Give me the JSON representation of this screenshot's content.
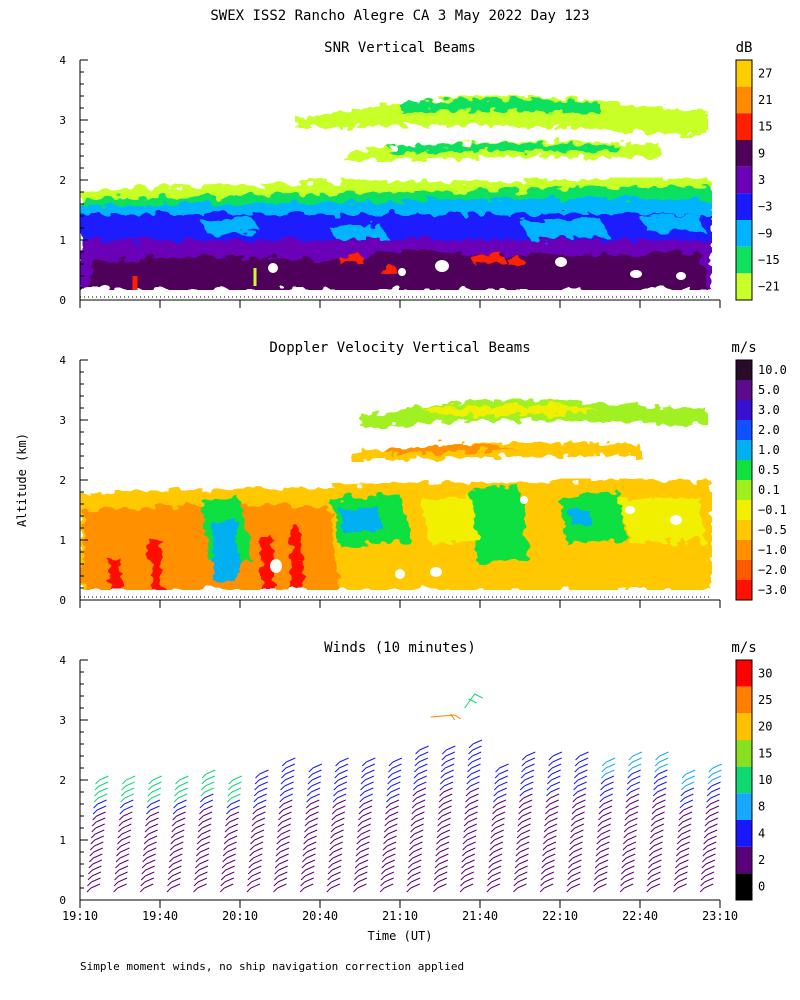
{
  "figure": {
    "title": "SWEX ISS2 Rancho Alegre CA   3 May 2022 Day 123",
    "ylabel": "Altitude (km)",
    "xlabel": "Time (UT)",
    "footnote": "Simple moment winds, no ship navigation correction applied",
    "time_ticks": [
      "19:10",
      "19:40",
      "20:10",
      "20:40",
      "21:10",
      "21:40",
      "22:10",
      "22:40",
      "23:10"
    ]
  },
  "chart_data": [
    {
      "type": "heatmap",
      "title": "SNR Vertical Beams",
      "ylim": [
        0,
        4
      ],
      "y_ticks": [
        "0",
        "1",
        "2",
        "3",
        "4"
      ],
      "colorbar": {
        "unit": "dB",
        "tick_labels": [
          "27",
          "21",
          "15",
          "9",
          "3",
          "−3",
          "−9",
          "−15",
          "−21"
        ],
        "colors": [
          "#ffcc00",
          "#ff8c00",
          "#ff2000",
          "#50005a",
          "#6a00b8",
          "#1a1aff",
          "#00b4ff",
          "#10e060",
          "#c8ff28"
        ]
      },
      "layers": [
        {
          "range_km": [
            0.1,
            1.0
          ],
          "level_db": 8
        },
        {
          "range_km": [
            1.0,
            1.7
          ],
          "level_db": -4
        },
        {
          "range_km": [
            1.7,
            2.0
          ],
          "level_db": -18
        },
        {
          "range_km": [
            2.3,
            2.6
          ],
          "level_db": -16
        },
        {
          "range_km": [
            2.8,
            3.4
          ],
          "level_db": -19
        }
      ]
    },
    {
      "type": "heatmap",
      "title": "Doppler Velocity Vertical Beams",
      "ylim": [
        0,
        4
      ],
      "y_ticks": [
        "0",
        "1",
        "2",
        "3",
        "4"
      ],
      "colorbar": {
        "unit": "m/s",
        "tick_labels": [
          "10.0",
          "5.0",
          "3.0",
          "2.0",
          "1.0",
          "0.5",
          "0.1",
          "−0.1",
          "−0.5",
          "−1.0",
          "−2.0",
          "−3.0"
        ],
        "colors": [
          "#2a0a2a",
          "#5a0a8a",
          "#3a10d0",
          "#1050ff",
          "#00b0f0",
          "#10e040",
          "#a0f020",
          "#f0f000",
          "#ffc800",
          "#ff9000",
          "#ff5a00",
          "#ff1000"
        ]
      },
      "layers": [
        {
          "range_km": [
            0.1,
            1.9
          ],
          "dominant_velocity_m_s": -0.5
        },
        {
          "range_km": [
            2.3,
            2.6
          ],
          "dominant_velocity_m_s": -1.0
        },
        {
          "range_km": [
            2.8,
            3.4
          ],
          "dominant_velocity_m_s": 0.3
        }
      ]
    },
    {
      "type": "wind_barbs",
      "title": "Winds (10 minutes)",
      "ylim": [
        0,
        4
      ],
      "y_ticks": [
        "0",
        "1",
        "2",
        "3",
        "4"
      ],
      "colorbar": {
        "unit": "m/s",
        "tick_labels": [
          "30",
          "25",
          "20",
          "15",
          "10",
          "8",
          "4",
          "2",
          "0"
        ],
        "colors": [
          "#ff0000",
          "#ff8000",
          "#ffc000",
          "#88e020",
          "#10d870",
          "#18a8ff",
          "#1818ff",
          "#5a007a",
          "#000000"
        ]
      },
      "profiles_per_hour": 6,
      "top_km_by_profile": [
        2.1,
        2.1,
        2.1,
        2.1,
        2.2,
        2.1,
        2.2,
        2.4,
        2.3,
        2.4,
        2.4,
        2.4,
        2.6,
        2.6,
        2.7,
        2.3,
        2.5,
        2.5,
        2.5,
        2.4,
        2.5,
        2.5,
        2.2,
        2.3
      ]
    }
  ]
}
